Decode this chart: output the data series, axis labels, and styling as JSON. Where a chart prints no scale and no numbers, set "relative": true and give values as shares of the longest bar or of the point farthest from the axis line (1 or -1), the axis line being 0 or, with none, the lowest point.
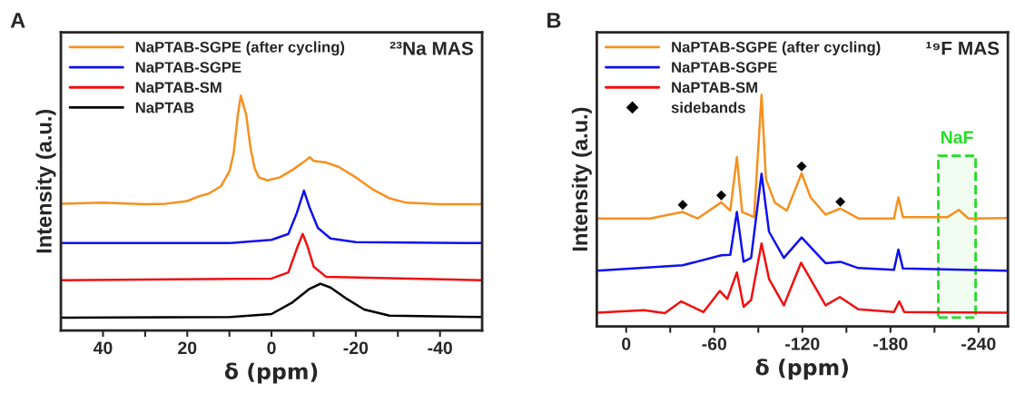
{
  "chart_data": [
    {
      "type": "line",
      "title": "A",
      "xlabel": "δ (ppm)",
      "ylabel": "Intensity (a.u.)",
      "annotations": [
        "²³Na MAS"
      ],
      "relative": true,
      "legend": "top left",
      "grid": false,
      "tick_labels": "x",
      "xlim": [
        50,
        -50
      ],
      "xticks": [
        40,
        {
          "value": 30,
          "label": null
        },
        20,
        {
          "value": 10,
          "label": null
        },
        0,
        {
          "value": -10,
          "label": null
        },
        -20,
        {
          "value": -30,
          "label": null
        },
        -40
      ],
      "series": [
        {
          "name": "NaPTAB-SGPE (after cycling)",
          "color": "#f7901e",
          "x": [
            50,
            40,
            30,
            25,
            20,
            17,
            15,
            12,
            10,
            9,
            8,
            7.3,
            6,
            5,
            4,
            3,
            1,
            -2,
            -5,
            -8,
            -9.1,
            -10,
            -13,
            -16,
            -20,
            -24,
            -28,
            -32,
            -40,
            -50
          ],
          "values": [
            0.54,
            0.544,
            0.538,
            0.54,
            0.551,
            0.573,
            0.582,
            0.614,
            0.677,
            0.753,
            0.918,
            1.0,
            0.918,
            0.779,
            0.69,
            0.652,
            0.639,
            0.652,
            0.684,
            0.722,
            0.738,
            0.722,
            0.715,
            0.696,
            0.652,
            0.601,
            0.563,
            0.544,
            0.538,
            0.538
          ]
        },
        {
          "name": "NaPTAB-SGPE",
          "color": "#1010f0",
          "x": [
            50,
            10,
            0,
            -4,
            -6,
            -7.7,
            -9,
            -11,
            -14,
            -20,
            -50
          ],
          "values": [
            0.372,
            0.372,
            0.386,
            0.411,
            0.5,
            0.595,
            0.525,
            0.437,
            0.392,
            0.376,
            0.372
          ]
        },
        {
          "name": "NaPTAB-SM",
          "color": "#f01010",
          "x": [
            50,
            0,
            -4,
            -6,
            -7.4,
            -8.5,
            -10,
            -13,
            -50
          ],
          "values": [
            0.214,
            0.221,
            0.247,
            0.348,
            0.411,
            0.361,
            0.272,
            0.228,
            0.214
          ]
        },
        {
          "name": "NaPTAB",
          "color": "#000000",
          "x": [
            50,
            10,
            0,
            -5,
            -9,
            -11.6,
            -14,
            -18,
            -22,
            -28,
            -50
          ],
          "values": [
            0.054,
            0.057,
            0.07,
            0.12,
            0.177,
            0.199,
            0.183,
            0.133,
            0.089,
            0.063,
            0.057
          ]
        }
      ]
    },
    {
      "type": "line",
      "title": "B",
      "xlabel": "δ (ppm)",
      "ylabel": "Intensity (a.u.)",
      "annotations": [
        "¹⁹F MAS"
      ],
      "relative": true,
      "legend": "top left",
      "grid": false,
      "tick_labels": "x",
      "xlim": [
        20,
        -260
      ],
      "xticks": [
        0,
        {
          "value": -30,
          "label": null
        },
        -60,
        {
          "value": -90,
          "label": null
        },
        -120,
        {
          "value": -150,
          "label": null
        },
        -180,
        {
          "value": -210,
          "label": null
        },
        -240
      ],
      "bands": [
        {
          "axis": "x",
          "from": -212.6,
          "to": -238,
          "label": "NaF",
          "color": "#22dd22"
        }
      ],
      "series": [
        {
          "name": "NaPTAB-SGPE (after cycling)",
          "color": "#f7901e",
          "x": [
            20,
            -16.2,
            -38.5,
            -48.6,
            -64.8,
            -70.9,
            -75.4,
            -79,
            -87.1,
            -92.2,
            -95.2,
            -101.3,
            -109.4,
            -119.5,
            -125.6,
            -135.8,
            -145.9,
            -158.1,
            -182.4,
            -185.4,
            -188.5,
            -218.9,
            -226.6,
            -233.1,
            -259.4
          ],
          "values": [
            0.466,
            0.466,
            0.494,
            0.466,
            0.536,
            0.5,
            0.73,
            0.494,
            0.472,
            1.0,
            0.636,
            0.534,
            0.5,
            0.661,
            0.557,
            0.483,
            0.509,
            0.466,
            0.466,
            0.557,
            0.472,
            0.472,
            0.503,
            0.466,
            0.468
          ]
        },
        {
          "name": "NaPTAB-SGPE",
          "color": "#1010f0",
          "x": [
            20,
            -38.5,
            -64.8,
            -70.9,
            -75.4,
            -80.0,
            -85.1,
            -92.2,
            -97.3,
            -107.4,
            -119.5,
            -135.8,
            -145.9,
            -158.1,
            -182.4,
            -185.4,
            -188.5,
            -259.4
          ],
          "values": [
            0.241,
            0.264,
            0.307,
            0.309,
            0.494,
            0.279,
            0.296,
            0.659,
            0.409,
            0.296,
            0.384,
            0.273,
            0.279,
            0.252,
            0.244,
            0.332,
            0.25,
            0.241
          ]
        },
        {
          "name": "NaPTAB-SM",
          "color": "#f01010",
          "x": [
            20,
            -12.2,
            -26.3,
            -37.5,
            -52.7,
            -63.8,
            -68.9,
            -75.4,
            -80.0,
            -85.1,
            -92.2,
            -97.3,
            -107.4,
            -119.1,
            -135.8,
            -145.5,
            -158.1,
            -182.4,
            -186.0,
            -189.4,
            -259.4
          ],
          "values": [
            0.059,
            0.07,
            0.057,
            0.108,
            0.062,
            0.153,
            0.119,
            0.233,
            0.085,
            0.114,
            0.358,
            0.205,
            0.091,
            0.275,
            0.091,
            0.127,
            0.074,
            0.062,
            0.108,
            0.062,
            0.059
          ]
        },
        {
          "name": "sidebands",
          "type": "scatter",
          "marker": "diamond",
          "color": "#000000",
          "x": [
            -38.5,
            -64.8,
            -119.5,
            -145.9
          ],
          "values": [
            0.525,
            0.566,
            0.691,
            0.538
          ]
        }
      ]
    }
  ]
}
